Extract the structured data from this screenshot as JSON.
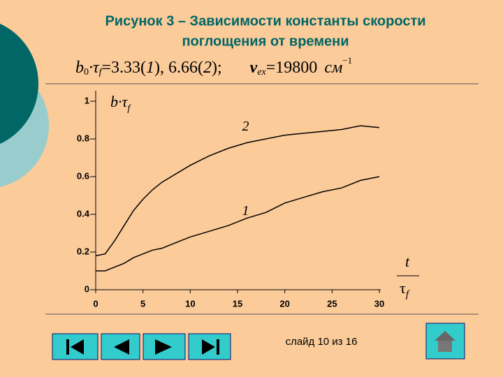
{
  "title": "Рисунок 3 – Зависимости константы скорости поглощения от времени",
  "title_lines": [
    "Рисунок 3 – Зависимости константы скорости",
    "поглощения от времени"
  ],
  "formula": [
    "b",
    "0",
    "·τ",
    "f",
    "=3.33(",
    "1",
    "), 6.66(",
    "2",
    ");",
    "ν",
    "ex",
    "=19800",
    "см",
    "−1"
  ],
  "chart_data": {
    "type": "line",
    "y_label": [
      "b·τ",
      "f"
    ],
    "x_label": [
      "t",
      "τ",
      "f"
    ],
    "x": [
      0,
      1,
      2,
      3,
      4,
      5,
      6,
      7,
      8,
      10,
      12,
      14,
      16,
      18,
      20,
      22,
      24,
      26,
      28,
      30
    ],
    "series": [
      {
        "name": "2",
        "color": "#000000",
        "values": [
          0.18,
          0.19,
          0.26,
          0.34,
          0.42,
          0.48,
          0.53,
          0.57,
          0.6,
          0.66,
          0.71,
          0.75,
          0.78,
          0.8,
          0.82,
          0.83,
          0.84,
          0.85,
          0.87,
          0.86
        ]
      },
      {
        "name": "1",
        "color": "#000000",
        "values": [
          0.1,
          0.1,
          0.12,
          0.14,
          0.17,
          0.19,
          0.21,
          0.22,
          0.24,
          0.28,
          0.31,
          0.34,
          0.38,
          0.41,
          0.46,
          0.49,
          0.52,
          0.54,
          0.58,
          0.6
        ]
      }
    ],
    "xlim": [
      0,
      30
    ],
    "xticks": [
      0,
      5,
      10,
      15,
      20,
      25,
      30
    ],
    "ylim": [
      0,
      1
    ],
    "yticks": [
      0,
      0.2,
      0.4,
      0.6,
      0.8,
      1
    ]
  },
  "footer": "слайд 10 из 16"
}
